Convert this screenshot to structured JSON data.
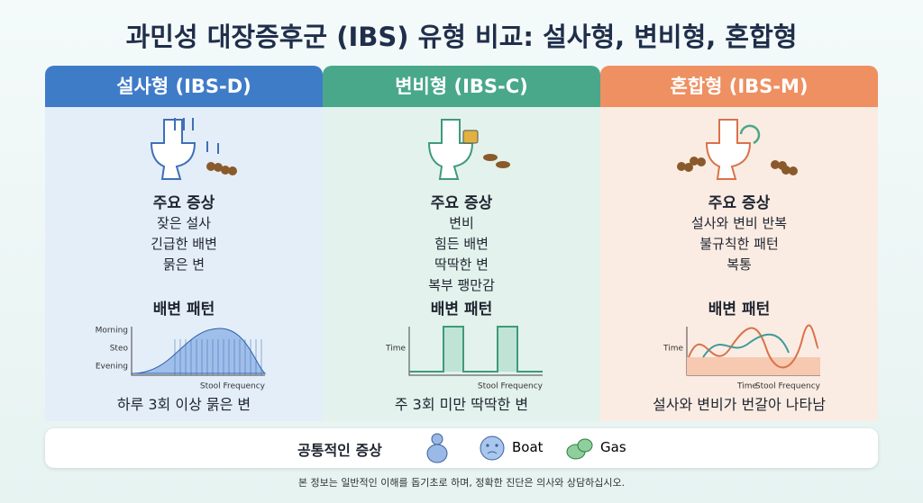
{
  "title": "과민성 대장증후군 (IBS) 유형 비교: 설사형, 변비형, 혼합형",
  "columns": [
    {
      "header": "설사형 (IBS-D)",
      "symptoms_title": "주요 증상",
      "symptoms": [
        "잦은 설사",
        "긴급한 배변",
        "묽은 변"
      ],
      "pattern_title": "배변 패턴",
      "chart": {
        "y_labels": [
          "Morning",
          "Steo",
          "Evening"
        ],
        "x_labels": [
          "Stool Frequency"
        ]
      },
      "summary": "하루 3회 이상 묽은 변"
    },
    {
      "header": "변비형 (IBS-C)",
      "symptoms_title": "주요 증상",
      "symptoms": [
        "변비",
        "힘든 배변",
        "딱딱한 변",
        "복부 팽만감"
      ],
      "pattern_title": "배변 패턴",
      "chart": {
        "y_labels": [
          "Time"
        ],
        "x_labels": [
          "Stool Frequency"
        ]
      },
      "summary": "주 3회 미만 딱딱한 변"
    },
    {
      "header": "혼합형 (IBS-M)",
      "symptoms_title": "주요 증상",
      "symptoms": [
        "설사와 변비 반복",
        "불규칙한 패턴",
        "복통"
      ],
      "pattern_title": "배변 패턴",
      "chart": {
        "y_labels": [
          "Time"
        ],
        "x_labels": [
          "Time",
          "Stool Frequency"
        ]
      },
      "summary": "설사와 변비가 번갈아 나타남"
    }
  ],
  "common": {
    "label": "공통적인 증상",
    "items": [
      "Boat",
      "Gas"
    ]
  },
  "disclaimer": "본 정보는 일반적인 이해를 돕기초로 하며, 정확한 진단은 의사와 상담하십시오."
}
